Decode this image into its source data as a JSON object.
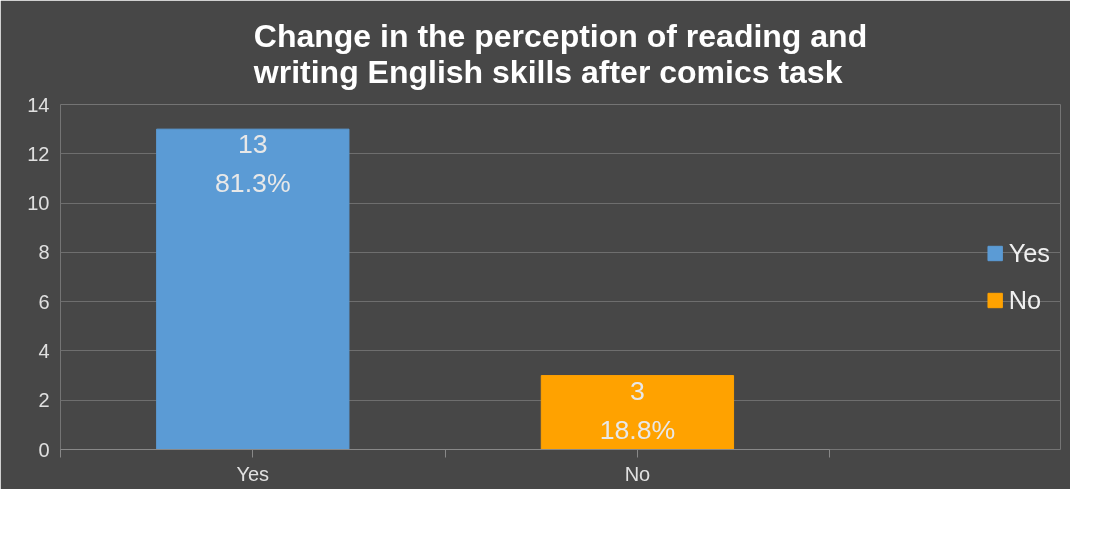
{
  "chart_data": {
    "type": "bar",
    "title": "Change in the perception of reading and\nwriting English skills after comics task",
    "categories": [
      "Yes",
      "No"
    ],
    "stacked": true,
    "series": [
      {
        "name": "Yes",
        "color": "#5b9bd5",
        "values": [
          13,
          null
        ],
        "value_labels": [
          "13\n81.3%",
          null
        ]
      },
      {
        "name": "No",
        "color": "#ffa200",
        "values": [
          null,
          3
        ],
        "value_labels": [
          null,
          "3\n18.8%"
        ]
      }
    ],
    "ylim": [
      0,
      14
    ],
    "yticks": [
      0,
      2,
      4,
      6,
      8,
      10,
      12,
      14
    ],
    "grid": "y",
    "legend": "right"
  }
}
